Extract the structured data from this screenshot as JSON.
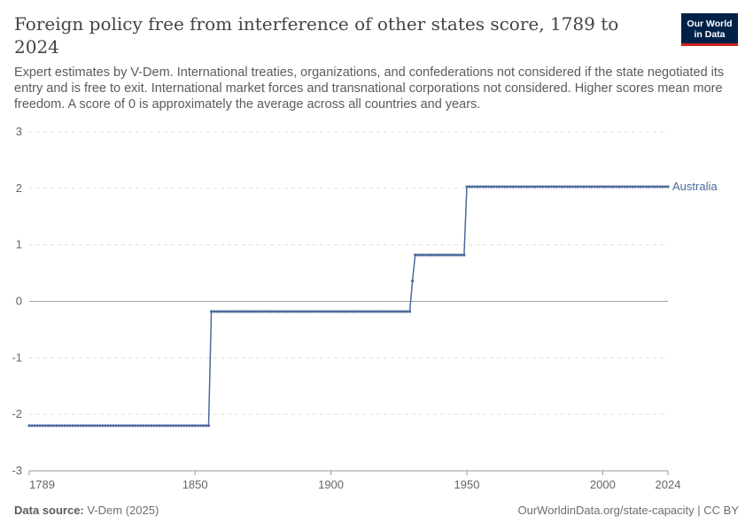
{
  "header": {
    "title": "Foreign policy free from interference of other states score, 1789 to 2024",
    "subtitle": "Expert estimates by V-Dem. International treaties, organizations, and confederations not considered if the state negotiated its entry and is free to exit. International market forces and transnational corporations not considered. Higher scores mean more freedom. A score of 0 is approximately the average across all countries and years.",
    "logo_line1": "Our World",
    "logo_line2": "in Data"
  },
  "footer": {
    "source_label": "Data source:",
    "source_value": "V-Dem (2025)",
    "link": "OurWorldinData.org/state-capacity | CC BY"
  },
  "colors": {
    "series": "#4c6a9c",
    "grid": "#dddddd",
    "zero_line": "#a1a1a1",
    "logo_bg": "#002147",
    "logo_accent": "#ce261e"
  },
  "chart_data": {
    "type": "line",
    "title": "Foreign policy free from interference of other states score, 1789 to 2024",
    "xlabel": "",
    "ylabel": "",
    "xlim": [
      1789,
      2024
    ],
    "ylim": [
      -3,
      3
    ],
    "x_ticks": [
      1789,
      1850,
      1900,
      1950,
      2000,
      2024
    ],
    "y_ticks": [
      -3,
      -2,
      -1,
      0,
      1,
      2,
      3
    ],
    "y_tick_labels": [
      "-3",
      "-2",
      "-1",
      "0",
      "1",
      "2",
      "3"
    ],
    "grid": "horizontal dashed",
    "legend": "inline label at end of line",
    "series": [
      {
        "name": "Australia",
        "segments": [
          {
            "from": 1789,
            "to": 1855,
            "value": -2.2
          },
          {
            "from": 1856,
            "to": 1929,
            "value": -0.18
          },
          {
            "from": 1930,
            "to": 1930,
            "value": 0.36
          },
          {
            "from": 1931,
            "to": 1949,
            "value": 0.82
          },
          {
            "from": 1950,
            "to": 2024,
            "value": 2.03
          }
        ]
      }
    ]
  }
}
